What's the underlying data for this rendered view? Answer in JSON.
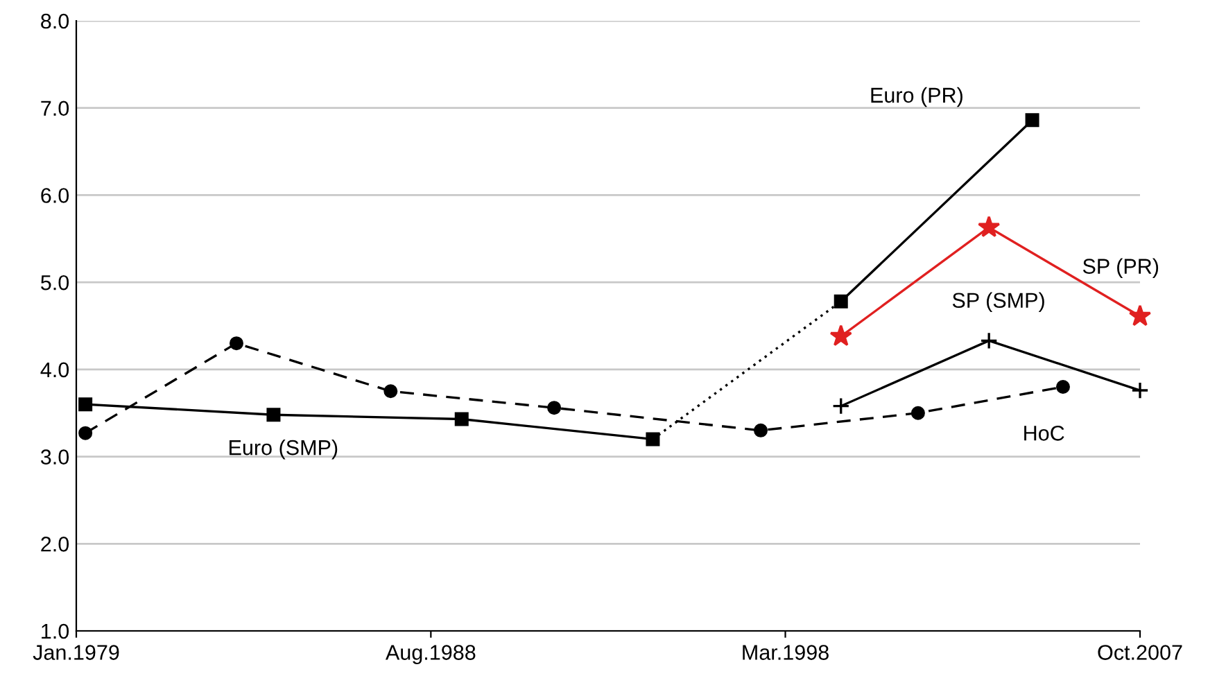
{
  "chart_data": {
    "type": "line",
    "ylim": [
      1.0,
      8.0
    ],
    "yticks": [
      {
        "value": 1.0,
        "label": "1.0"
      },
      {
        "value": 2.0,
        "label": "2.0"
      },
      {
        "value": 3.0,
        "label": "3.0"
      },
      {
        "value": 4.0,
        "label": "4.0"
      },
      {
        "value": 5.0,
        "label": "5.0"
      },
      {
        "value": 6.0,
        "label": "6.0"
      },
      {
        "value": 7.0,
        "label": "7.0"
      },
      {
        "value": 8.0,
        "label": "8.0"
      }
    ],
    "xlim": [
      "1979-01",
      "2007-10"
    ],
    "xticks": [
      {
        "value": "1979-01",
        "label": "Jan.1979"
      },
      {
        "value": "1988-08",
        "label": "Aug.1988"
      },
      {
        "value": "1998-03",
        "label": "Mar.1998"
      },
      {
        "value": "2007-10",
        "label": "Oct.2007"
      }
    ],
    "grid": "y",
    "legend": false,
    "series": [
      {
        "name": "Euro (SMP)",
        "color": "#000000",
        "marker": "square",
        "line_style": "solid",
        "x": [
          "1979-04",
          "1984-05",
          "1989-06",
          "1994-08"
        ],
        "values": [
          3.6,
          3.48,
          3.43,
          3.2
        ]
      },
      {
        "color": "#000000",
        "line_style": "dotted",
        "x": [
          "1994-08",
          "1999-09"
        ],
        "values": [
          3.2,
          4.78
        ]
      },
      {
        "name": "Euro (PR)",
        "color": "#000000",
        "marker": "square",
        "line_style": "solid",
        "x": [
          "1999-09",
          "2004-11"
        ],
        "values": [
          4.78,
          6.86
        ]
      },
      {
        "name": "SP (PR)",
        "color": "#e02020",
        "marker": "star",
        "line_style": "solid",
        "x": [
          "1999-09",
          "2003-09",
          "2007-10"
        ],
        "values": [
          4.38,
          5.63,
          4.61
        ]
      },
      {
        "name": "SP (SMP)",
        "color": "#000000",
        "marker": "cross",
        "line_style": "solid",
        "x": [
          "1999-09",
          "2003-09",
          "2007-10"
        ],
        "values": [
          3.58,
          4.33,
          3.76
        ]
      },
      {
        "name": "HoC",
        "color": "#000000",
        "marker": "circle",
        "line_style": "dashed",
        "x": [
          "1979-04",
          "1983-05",
          "1987-07",
          "1991-12",
          "1997-07",
          "2001-10",
          "2005-09"
        ],
        "values": [
          3.27,
          4.3,
          3.75,
          3.56,
          3.3,
          3.5,
          3.8
        ]
      }
    ]
  }
}
